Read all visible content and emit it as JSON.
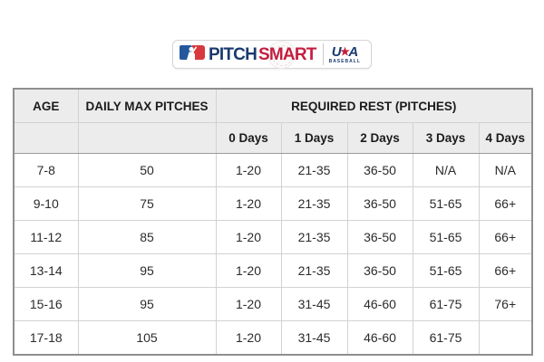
{
  "logo": {
    "pitch": "PITCH",
    "smart": "SMART",
    "usa": "USA",
    "baseball": "BASEBALL",
    "colors": {
      "navy": "#1a3a6e",
      "red": "#c41e3e",
      "mlb_blue": "#24589e",
      "mlb_red": "#d8383e"
    }
  },
  "table": {
    "header": {
      "age": "AGE",
      "daily_max": "DAILY MAX PITCHES",
      "required_rest": "REQUIRED REST (PITCHES)",
      "day_columns": [
        "0 Days",
        "1 Days",
        "2 Days",
        "3 Days",
        "4 Days"
      ]
    },
    "rows": [
      {
        "age": "7-8",
        "daily_max": "50",
        "rest": [
          "1-20",
          "21-35",
          "36-50",
          "N/A",
          "N/A"
        ]
      },
      {
        "age": "9-10",
        "daily_max": "75",
        "rest": [
          "1-20",
          "21-35",
          "36-50",
          "51-65",
          "66+"
        ]
      },
      {
        "age": "11-12",
        "daily_max": "85",
        "rest": [
          "1-20",
          "21-35",
          "36-50",
          "51-65",
          "66+"
        ]
      },
      {
        "age": "13-14",
        "daily_max": "95",
        "rest": [
          "1-20",
          "21-35",
          "36-50",
          "51-65",
          "66+"
        ]
      },
      {
        "age": "15-16",
        "daily_max": "95",
        "rest": [
          "1-20",
          "31-45",
          "46-60",
          "61-75",
          "76+"
        ]
      },
      {
        "age": "17-18",
        "daily_max": "105",
        "rest": [
          "1-20",
          "31-45",
          "46-60",
          "61-75",
          ""
        ]
      }
    ]
  }
}
